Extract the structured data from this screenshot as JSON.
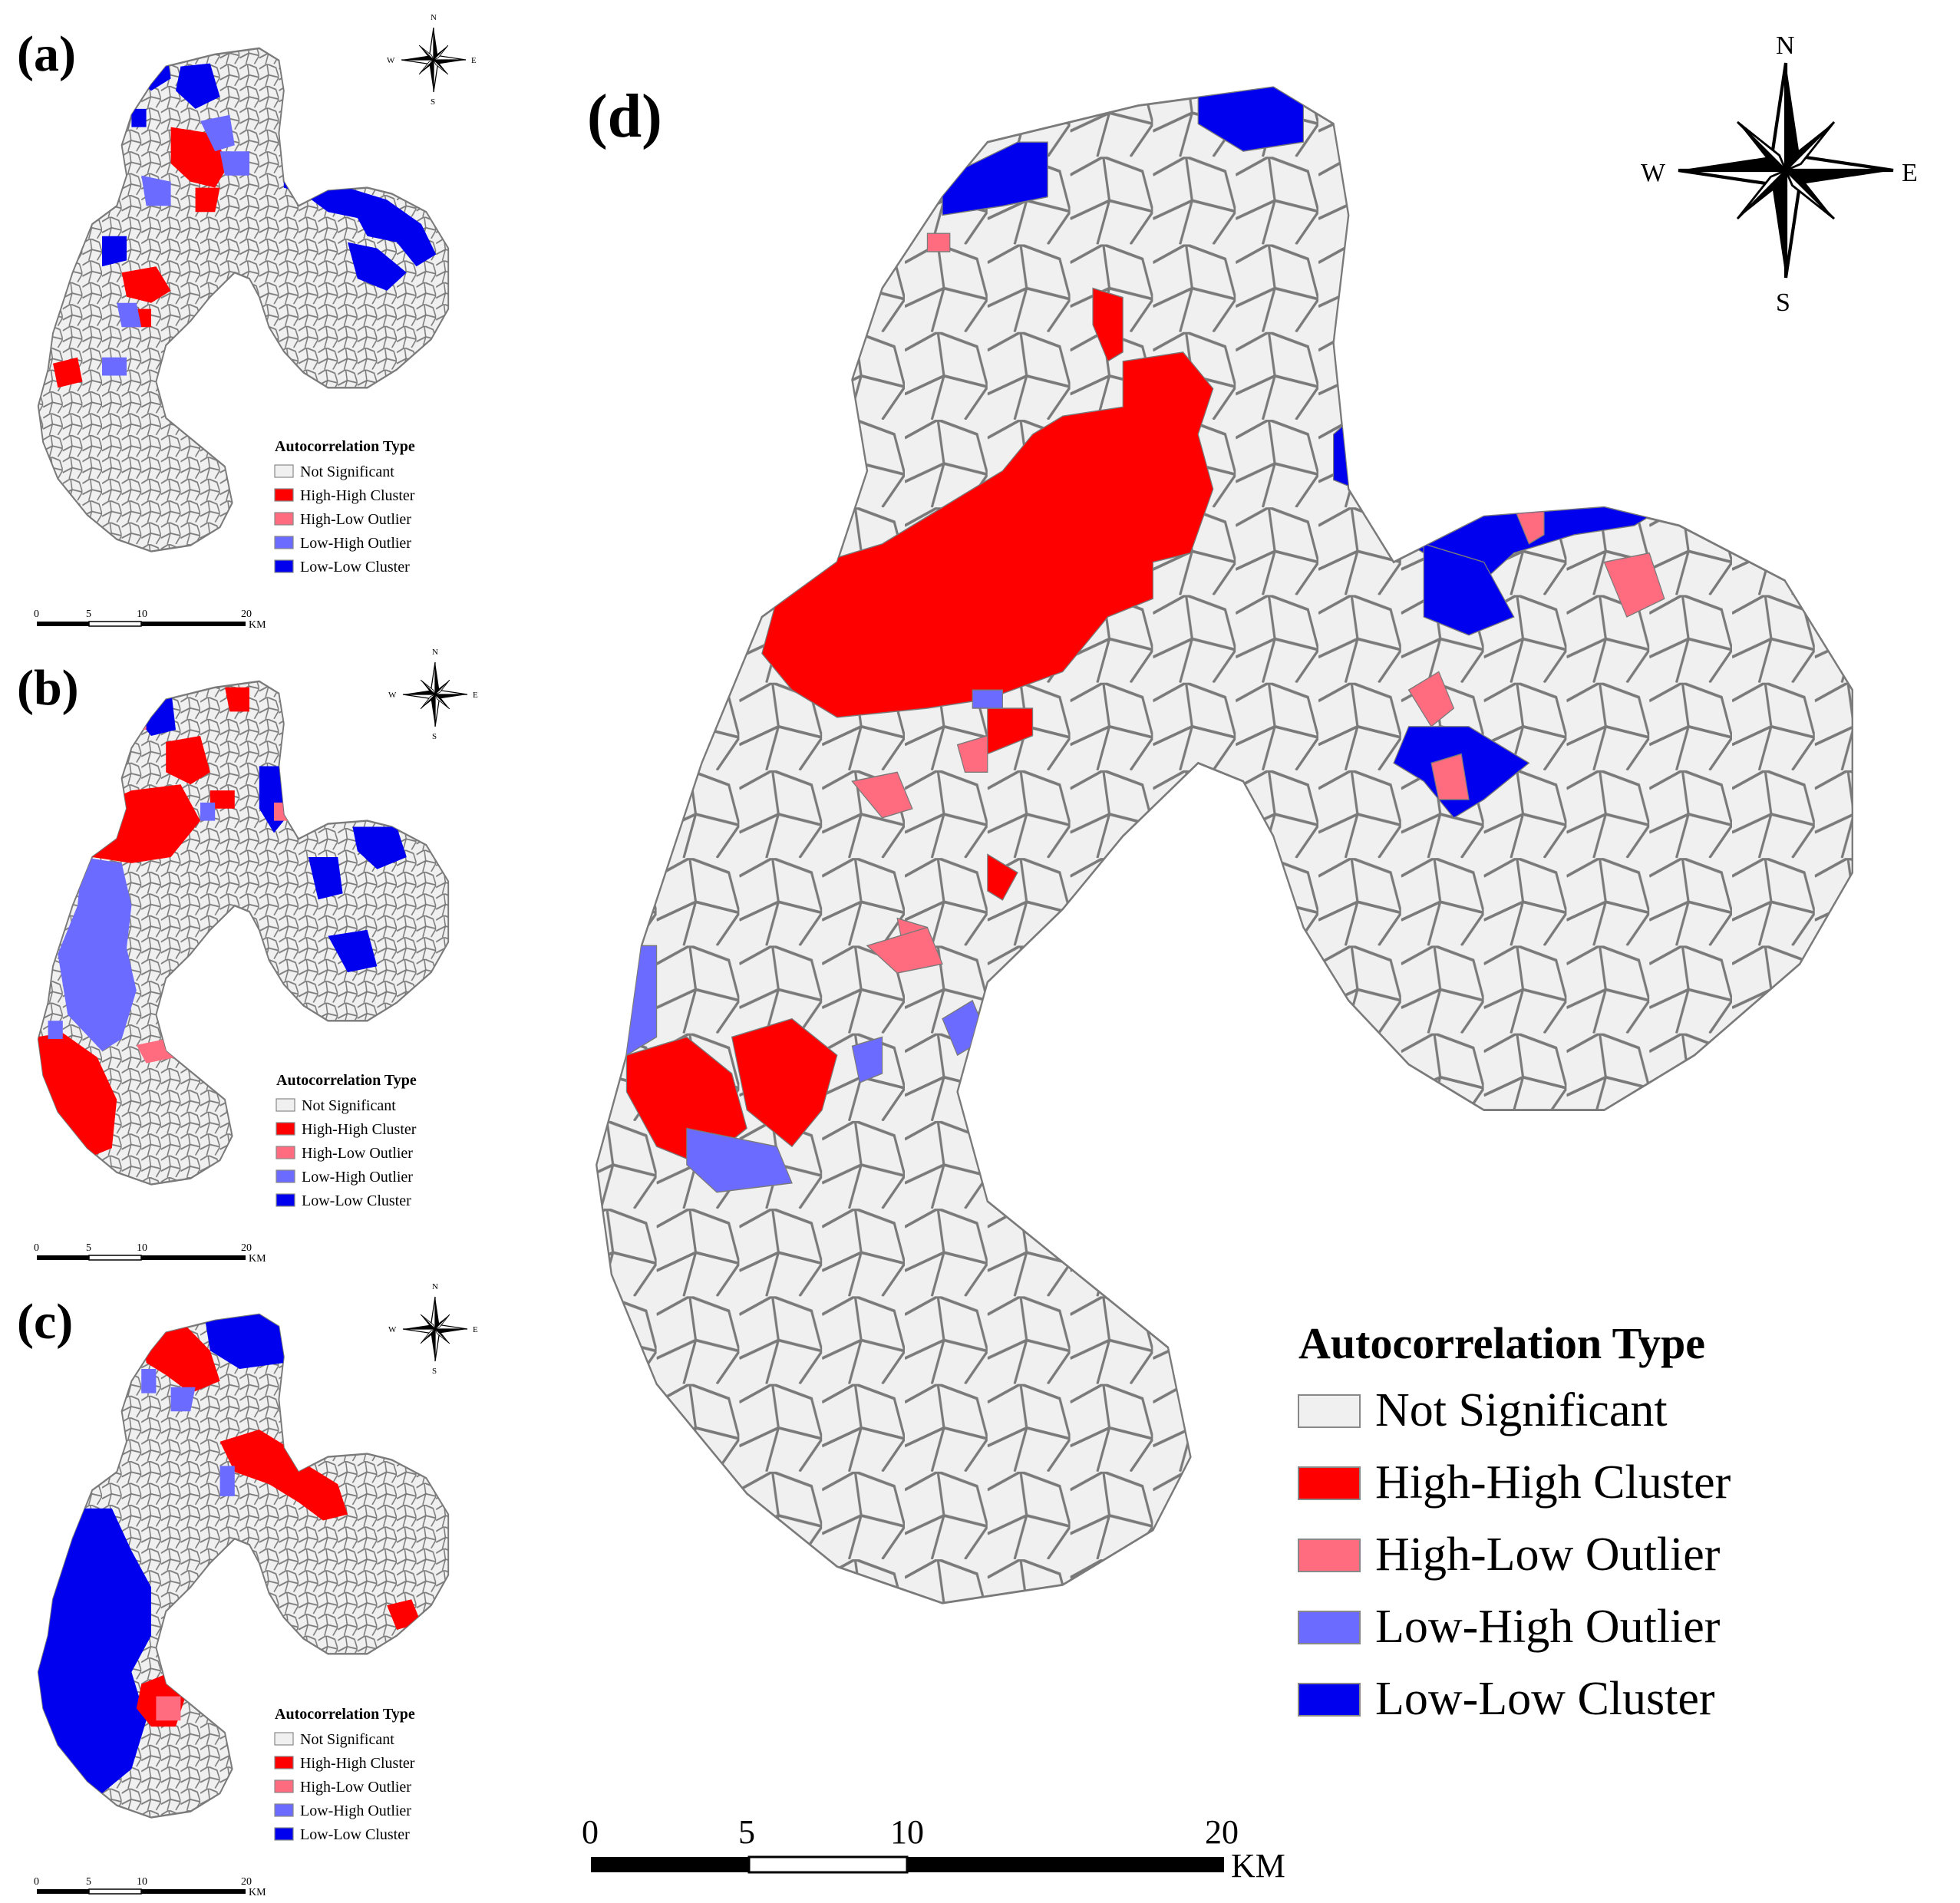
{
  "colors": {
    "not_significant": "#f0f0f0",
    "high_high": "#ff0000",
    "high_low": "#ff6b7f",
    "low_high": "#6b6bff",
    "low_low": "#0000ee",
    "boundary": "#7a7a7a",
    "text": "#000000"
  },
  "legend": {
    "title": "Autocorrelation Type",
    "items": [
      {
        "key": "not_significant",
        "label": "Not Significant"
      },
      {
        "key": "high_high",
        "label": "High-High Cluster"
      },
      {
        "key": "high_low",
        "label": "High-Low Outlier"
      },
      {
        "key": "low_high",
        "label": "Low-High Outlier"
      },
      {
        "key": "low_low",
        "label": "Low-Low Cluster"
      }
    ]
  },
  "compass": {
    "n": "N",
    "e": "E",
    "s": "S",
    "w": "W"
  },
  "scale_bar": {
    "ticks": [
      "0",
      "5",
      "10",
      "20"
    ],
    "unit": "KM"
  },
  "panels": [
    {
      "id": "a",
      "label": "(a)"
    },
    {
      "id": "b",
      "label": "(b)"
    },
    {
      "id": "c",
      "label": "(c)"
    },
    {
      "id": "d",
      "label": "(d)"
    }
  ]
}
